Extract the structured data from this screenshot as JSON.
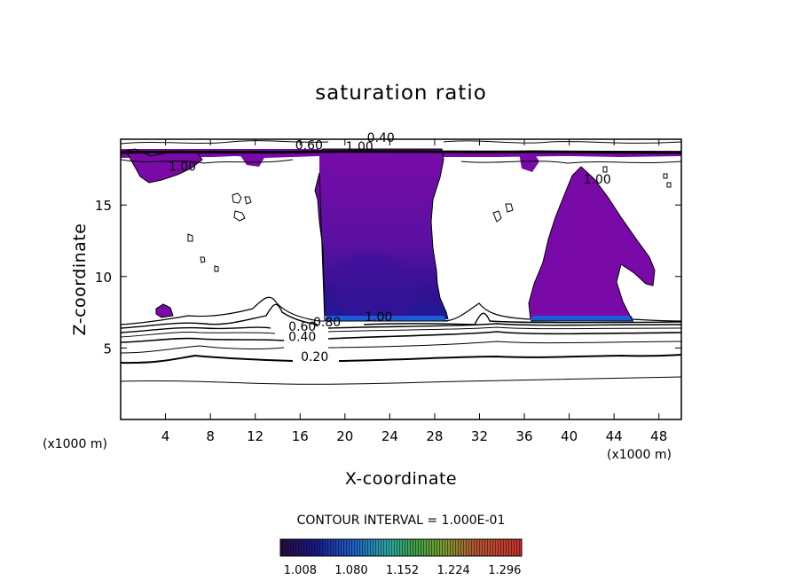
{
  "chart_data": {
    "type": "contour",
    "title": "saturation ratio",
    "xlabel": "X-coordinate",
    "ylabel": "Z-coordinate",
    "x_unit": "(x1000 m)",
    "y_unit": "(x1000 m)",
    "xlim": [
      0,
      50
    ],
    "ylim": [
      0,
      19.6
    ],
    "xticks": [
      4,
      8,
      12,
      16,
      20,
      24,
      28,
      32,
      36,
      40,
      44,
      48
    ],
    "yticks": [
      5,
      10,
      15
    ],
    "contour_interval_text": "CONTOUR INTERVAL = 1.000E-01",
    "contour_labels": [
      {
        "text": "0.20",
        "x": 17.3,
        "y": 4.1
      },
      {
        "text": "0.40",
        "x": 16.2,
        "y": 5.5
      },
      {
        "text": "0.60",
        "x": 16.2,
        "y": 6.2
      },
      {
        "text": "0.80",
        "x": 18.4,
        "y": 6.5
      },
      {
        "text": "1.00",
        "x": 23.0,
        "y": 6.9
      },
      {
        "text": "1.00",
        "x": 5.5,
        "y": 17.4
      },
      {
        "text": "1.00",
        "x": 42.5,
        "y": 16.5
      },
      {
        "text": "1.00",
        "x": 21.3,
        "y": 18.8
      },
      {
        "text": "0.60",
        "x": 16.8,
        "y": 18.9
      },
      {
        "text": "0.40",
        "x": 23.2,
        "y": 19.4
      }
    ],
    "colorbar": {
      "ticks": [
        "1.008",
        "1.080",
        "1.152",
        "1.224",
        "1.296"
      ],
      "range": [
        0.98,
        1.32
      ]
    },
    "colors": {
      "supersaturated_fill": "#7a0aa8",
      "deep_fill": "#3d0f9c",
      "line": "#000000"
    }
  }
}
